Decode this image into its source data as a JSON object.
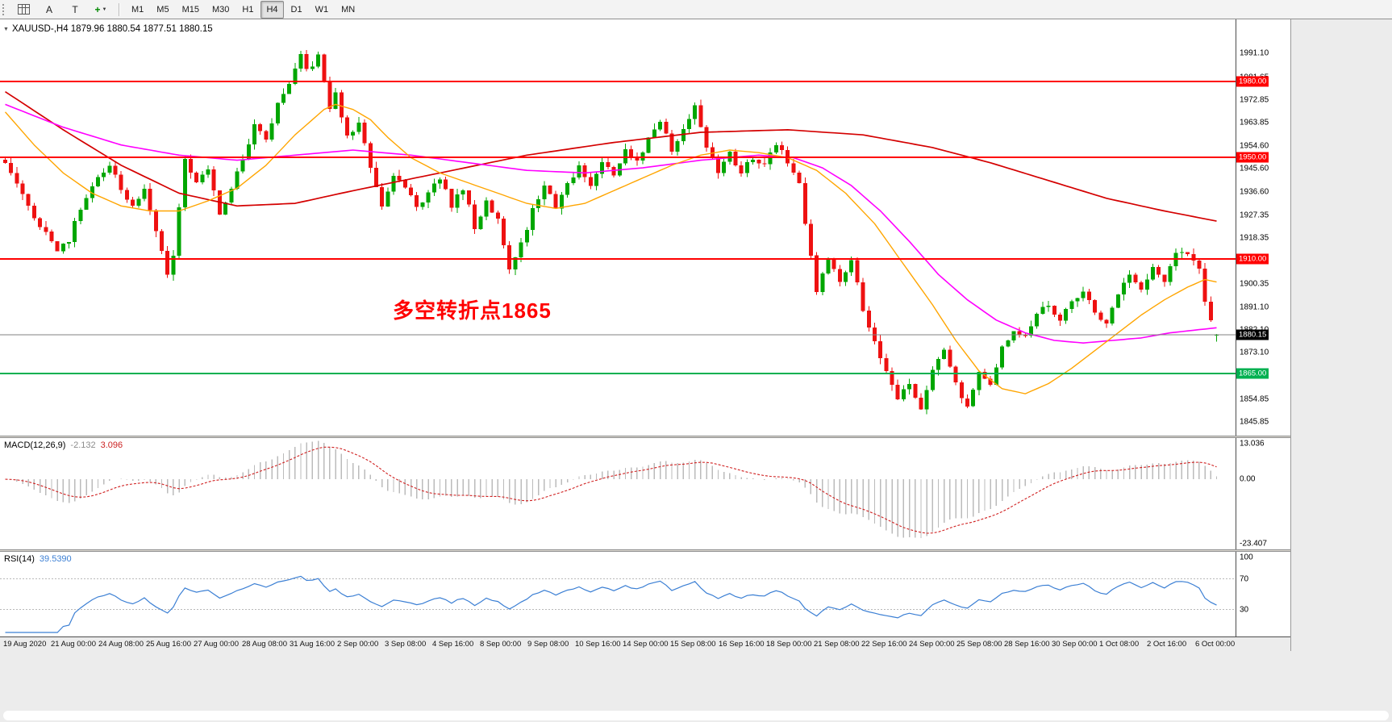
{
  "toolbar": {
    "buttons": [
      {
        "name": "chart-window-button",
        "icon": "grid",
        "label": ""
      },
      {
        "name": "arrow-tool-button",
        "label": "A"
      },
      {
        "name": "text-tool-button",
        "label": "T"
      },
      {
        "name": "indicators-button",
        "label": "+",
        "color": "#008800",
        "bold": true,
        "caret": true
      }
    ],
    "timeframes": [
      "M1",
      "M5",
      "M15",
      "M30",
      "H1",
      "H4",
      "D1",
      "W1",
      "MN"
    ],
    "active_timeframe": "H4"
  },
  "chart": {
    "title": "XAUUSD-,H4 1879.96 1880.54 1877.51 1880.15",
    "symbol": "XAUUSD-",
    "period": "H4",
    "annotation": {
      "text": "多空转折点1865",
      "color": "#FF0000"
    }
  },
  "indicators": {
    "macd": {
      "label": "MACD(12,26,9)",
      "value_main": "-2.132",
      "value_signal": "3.096"
    },
    "rsi": {
      "label": "RSI(14)",
      "value": "39.5390"
    }
  },
  "chart_data": {
    "type": "candlestick",
    "symbol": "XAUUSD-",
    "timeframe": "H4",
    "bars": 210,
    "last": {
      "open": 1879.96,
      "high": 1880.54,
      "low": 1877.51,
      "close": 1880.15
    },
    "y_range": [
      1840.5,
      2004.5
    ],
    "up_color": "#00A600",
    "down_color": "#EE1111",
    "price_path": [
      [
        0,
        1948
      ],
      [
        2,
        1941
      ],
      [
        4,
        1930
      ],
      [
        6,
        1924
      ],
      [
        9,
        1913
      ],
      [
        11,
        1918
      ],
      [
        13,
        1930
      ],
      [
        16,
        1942
      ],
      [
        18,
        1946
      ],
      [
        20,
        1938
      ],
      [
        22,
        1930
      ],
      [
        24,
        1938
      ],
      [
        26,
        1922
      ],
      [
        28,
        1905
      ],
      [
        29,
        1912
      ],
      [
        31,
        1950
      ],
      [
        33,
        1940
      ],
      [
        35,
        1946
      ],
      [
        37,
        1928
      ],
      [
        39,
        1938
      ],
      [
        41,
        1950
      ],
      [
        43,
        1963
      ],
      [
        45,
        1958
      ],
      [
        47,
        1971
      ],
      [
        49,
        1980
      ],
      [
        51,
        1991
      ],
      [
        52,
        1984
      ],
      [
        54,
        1990
      ],
      [
        56,
        1970
      ],
      [
        57,
        1976
      ],
      [
        59,
        1958
      ],
      [
        61,
        1965
      ],
      [
        63,
        1946
      ],
      [
        65,
        1931
      ],
      [
        67,
        1944
      ],
      [
        69,
        1938
      ],
      [
        71,
        1930
      ],
      [
        73,
        1936
      ],
      [
        75,
        1942
      ],
      [
        77,
        1931
      ],
      [
        79,
        1938
      ],
      [
        81,
        1923
      ],
      [
        83,
        1932
      ],
      [
        85,
        1926
      ],
      [
        87,
        1906
      ],
      [
        89,
        1916
      ],
      [
        91,
        1929
      ],
      [
        93,
        1938
      ],
      [
        95,
        1931
      ],
      [
        97,
        1940
      ],
      [
        99,
        1946
      ],
      [
        101,
        1940
      ],
      [
        103,
        1948
      ],
      [
        105,
        1943
      ],
      [
        107,
        1954
      ],
      [
        109,
        1948
      ],
      [
        111,
        1958
      ],
      [
        113,
        1965
      ],
      [
        115,
        1953
      ],
      [
        117,
        1961
      ],
      [
        119,
        1970
      ],
      [
        121,
        1955
      ],
      [
        123,
        1945
      ],
      [
        125,
        1952
      ],
      [
        127,
        1944
      ],
      [
        129,
        1950
      ],
      [
        131,
        1947
      ],
      [
        133,
        1955
      ],
      [
        135,
        1949
      ],
      [
        137,
        1941
      ],
      [
        138,
        1925
      ],
      [
        140,
        1898
      ],
      [
        142,
        1910
      ],
      [
        144,
        1901
      ],
      [
        146,
        1911
      ],
      [
        148,
        1890
      ],
      [
        150,
        1877
      ],
      [
        152,
        1867
      ],
      [
        154,
        1855
      ],
      [
        156,
        1862
      ],
      [
        158,
        1851
      ],
      [
        160,
        1866
      ],
      [
        162,
        1874
      ],
      [
        164,
        1861
      ],
      [
        166,
        1851
      ],
      [
        168,
        1865
      ],
      [
        170,
        1861
      ],
      [
        172,
        1876
      ],
      [
        174,
        1882
      ],
      [
        176,
        1879
      ],
      [
        178,
        1888
      ],
      [
        180,
        1892
      ],
      [
        182,
        1885
      ],
      [
        184,
        1894
      ],
      [
        186,
        1898
      ],
      [
        188,
        1889
      ],
      [
        190,
        1885
      ],
      [
        192,
        1896
      ],
      [
        194,
        1904
      ],
      [
        196,
        1897
      ],
      [
        198,
        1907
      ],
      [
        200,
        1901
      ],
      [
        202,
        1912
      ],
      [
        204,
        1913
      ],
      [
        206,
        1907
      ],
      [
        207,
        1894
      ],
      [
        208,
        1885
      ],
      [
        209,
        1880.15
      ]
    ],
    "ma_series": [
      {
        "name": "ma-slow-red",
        "color": "#D40000",
        "width": 1.7,
        "points": [
          [
            0,
            1976
          ],
          [
            10,
            1961
          ],
          [
            20,
            1947
          ],
          [
            30,
            1936
          ],
          [
            40,
            1931
          ],
          [
            50,
            1932
          ],
          [
            60,
            1937
          ],
          [
            75,
            1944
          ],
          [
            90,
            1951
          ],
          [
            105,
            1956
          ],
          [
            120,
            1960
          ],
          [
            135,
            1961
          ],
          [
            148,
            1959
          ],
          [
            160,
            1954
          ],
          [
            170,
            1948
          ],
          [
            180,
            1941
          ],
          [
            190,
            1934
          ],
          [
            200,
            1929
          ],
          [
            209,
            1925
          ]
        ]
      },
      {
        "name": "ma-mid-magenta",
        "color": "#FF00FF",
        "width": 1.6,
        "points": [
          [
            0,
            1971
          ],
          [
            10,
            1962
          ],
          [
            20,
            1955
          ],
          [
            30,
            1951
          ],
          [
            40,
            1949
          ],
          [
            50,
            1951
          ],
          [
            60,
            1953
          ],
          [
            70,
            1951
          ],
          [
            80,
            1948
          ],
          [
            90,
            1945
          ],
          [
            100,
            1944
          ],
          [
            110,
            1946
          ],
          [
            120,
            1949
          ],
          [
            130,
            1951
          ],
          [
            136,
            1950
          ],
          [
            141,
            1946
          ],
          [
            146,
            1939
          ],
          [
            151,
            1929
          ],
          [
            156,
            1917
          ],
          [
            161,
            1904
          ],
          [
            166,
            1894
          ],
          [
            171,
            1886
          ],
          [
            176,
            1881
          ],
          [
            181,
            1878
          ],
          [
            186,
            1877
          ],
          [
            191,
            1878
          ],
          [
            196,
            1879
          ],
          [
            201,
            1881
          ],
          [
            205,
            1882
          ],
          [
            209,
            1883
          ]
        ]
      },
      {
        "name": "ma-fast-orange",
        "color": "#FFA500",
        "width": 1.4,
        "points": [
          [
            0,
            1968
          ],
          [
            5,
            1955
          ],
          [
            10,
            1944
          ],
          [
            15,
            1936
          ],
          [
            20,
            1931
          ],
          [
            25,
            1929
          ],
          [
            30,
            1929
          ],
          [
            35,
            1933
          ],
          [
            40,
            1938
          ],
          [
            45,
            1947
          ],
          [
            50,
            1959
          ],
          [
            55,
            1969
          ],
          [
            57,
            1971
          ],
          [
            60,
            1969
          ],
          [
            63,
            1965
          ],
          [
            66,
            1958
          ],
          [
            70,
            1950
          ],
          [
            75,
            1944
          ],
          [
            80,
            1940
          ],
          [
            85,
            1936
          ],
          [
            90,
            1932
          ],
          [
            95,
            1930
          ],
          [
            100,
            1932
          ],
          [
            105,
            1937
          ],
          [
            110,
            1942
          ],
          [
            115,
            1947
          ],
          [
            120,
            1951
          ],
          [
            125,
            1953
          ],
          [
            130,
            1952
          ],
          [
            135,
            1950
          ],
          [
            140,
            1945
          ],
          [
            145,
            1936
          ],
          [
            150,
            1924
          ],
          [
            155,
            1908
          ],
          [
            160,
            1892
          ],
          [
            164,
            1878
          ],
          [
            168,
            1866
          ],
          [
            172,
            1859
          ],
          [
            176,
            1857
          ],
          [
            180,
            1861
          ],
          [
            184,
            1867
          ],
          [
            188,
            1874
          ],
          [
            192,
            1881
          ],
          [
            196,
            1888
          ],
          [
            200,
            1894
          ],
          [
            204,
            1899
          ],
          [
            207,
            1902
          ],
          [
            209,
            1901
          ]
        ]
      }
    ],
    "hlines": [
      {
        "price": 1980.0,
        "label": "1980.00",
        "color": "#FF0000"
      },
      {
        "price": 1950.0,
        "label": "1950.00",
        "color": "#FF0000"
      },
      {
        "price": 1910.0,
        "label": "1910.00",
        "color": "#FF0000"
      },
      {
        "price": 1865.0,
        "label": "1865.00",
        "color": "#00B050"
      }
    ],
    "current_price": {
      "value": 1880.15,
      "label": "1880.15",
      "line_color": "#808080",
      "label_bg": "#000000"
    },
    "y_ticks": [
      1991.1,
      1981.65,
      1972.85,
      1963.85,
      1954.6,
      1945.6,
      1936.6,
      1927.35,
      1918.35,
      1900.35,
      1891.1,
      1882.1,
      1873.1,
      1854.85,
      1845.85
    ],
    "x_labels": [
      "19 Aug 2020",
      "21 Aug 00:00",
      "24 Aug 08:00",
      "25 Aug 16:00",
      "27 Aug 00:00",
      "28 Aug 08:00",
      "31 Aug 16:00",
      "2 Sep 00:00",
      "3 Sep 08:00",
      "4 Sep 16:00",
      "8 Sep 00:00",
      "9 Sep 08:00",
      "10 Sep 16:00",
      "14 Sep 00:00",
      "15 Sep 08:00",
      "16 Sep 16:00",
      "18 Sep 00:00",
      "21 Sep 08:00",
      "22 Sep 16:00",
      "24 Sep 00:00",
      "25 Sep 08:00",
      "28 Sep 16:00",
      "30 Sep 00:00",
      "1 Oct 08:00",
      "2 Oct 16:00",
      "6 Oct 00:00"
    ],
    "macd": {
      "fast": 12,
      "slow": 26,
      "signal_period": 9,
      "scale_max": 13.036,
      "scale_min": -23.407,
      "scale_max_label": "13.036",
      "zero_label": "0.00",
      "scale_min_label": "-23.407",
      "hist_color": "#BBBBBB",
      "signal_color": "#D02020"
    },
    "rsi": {
      "period": 14,
      "levels": [
        70,
        30
      ],
      "scale_labels": [
        "100",
        "70",
        "30"
      ],
      "color": "#3B7FD4"
    }
  }
}
